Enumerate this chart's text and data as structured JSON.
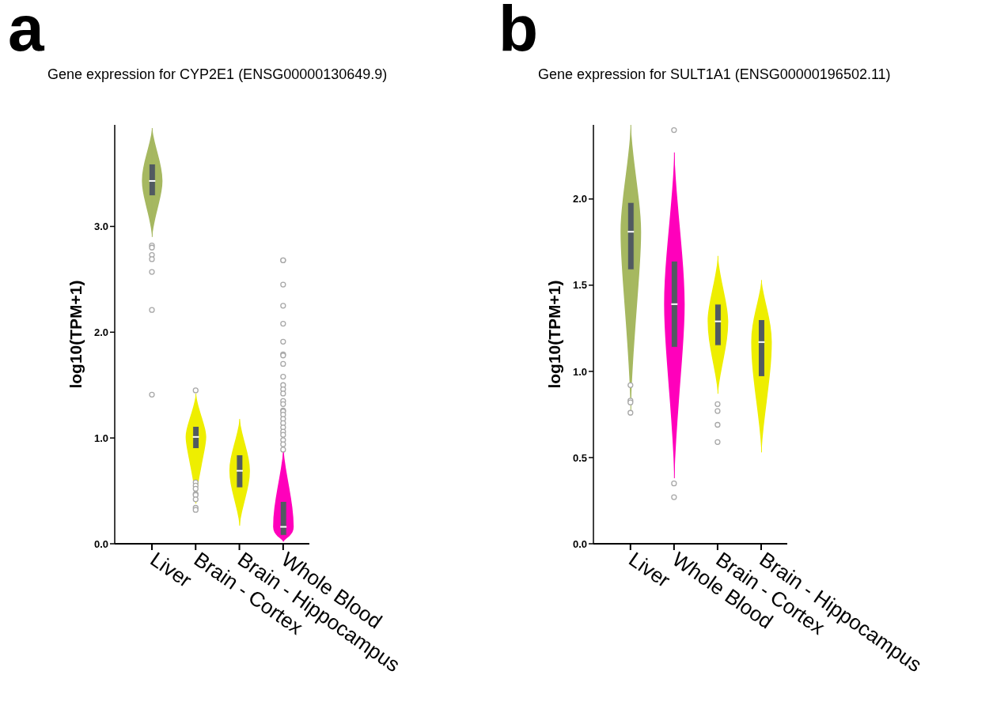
{
  "chart_data": [
    {
      "type": "box",
      "title": "Gene expression for CYP2E1 (ENSG00000130649.9)",
      "ylabel": "log10(TPM+1)",
      "annotations": [
        "a"
      ],
      "categories": [
        "Liver",
        "Brain - Cortex",
        "Brain - Hippocampus",
        "Whole Blood"
      ],
      "colors": [
        "#a6b860",
        "#eeee00",
        "#eeee00",
        "#ff00bb"
      ],
      "boxes": [
        {
          "low": 2.9,
          "q1": 3.29,
          "median": 3.43,
          "q3": 3.59,
          "high": 3.93,
          "outliers": [
            2.82,
            2.8,
            2.73,
            2.69,
            2.57,
            2.21,
            1.41
          ]
        },
        {
          "low": 0.38,
          "q1": 0.9,
          "median": 1.01,
          "q3": 1.11,
          "high": 1.42,
          "outliers": [
            1.45,
            0.58,
            0.55,
            0.52,
            0.47,
            0.46,
            0.42,
            0.34,
            0.32
          ]
        },
        {
          "low": 0.17,
          "q1": 0.53,
          "median": 0.69,
          "q3": 0.84,
          "high": 1.18
        },
        {
          "low": 0.02,
          "q1": 0.08,
          "median": 0.16,
          "q3": 0.4,
          "high": 0.9,
          "outliers": [
            2.68,
            2.68,
            2.45,
            2.25,
            2.08,
            1.91,
            1.79,
            1.78,
            1.7,
            1.58,
            1.5,
            1.46,
            1.42,
            1.35,
            1.32,
            1.26,
            1.25,
            1.22,
            1.18,
            1.14,
            1.1,
            1.06,
            1.03,
            0.98,
            0.94,
            0.89
          ]
        }
      ],
      "ylim": [
        0,
        3.96
      ],
      "yticks": [
        {
          "value": 0,
          "label": "0.0"
        },
        {
          "value": 1,
          "label": "1.0"
        },
        {
          "value": 2,
          "label": "2.0"
        },
        {
          "value": 3,
          "label": "3.0"
        }
      ],
      "grid": false,
      "legend": false
    },
    {
      "type": "box",
      "title": "Gene expression for SULT1A1 (ENSG00000196502.11)",
      "ylabel": "log10(TPM+1)",
      "annotations": [
        "b"
      ],
      "categories": [
        "Liver",
        "Whole Blood",
        "Brain - Cortex",
        "Brain - Hippocampus"
      ],
      "colors": [
        "#a6b860",
        "#ff00bb",
        "#eeee00",
        "#eeee00"
      ],
      "boxes": [
        {
          "low": 0.77,
          "q1": 1.59,
          "median": 1.81,
          "q3": 1.98,
          "high": 2.43,
          "outliers": [
            0.92,
            0.83,
            0.82,
            0.76
          ]
        },
        {
          "low": 0.38,
          "q1": 1.14,
          "median": 1.39,
          "q3": 1.64,
          "high": 2.27,
          "outliers": [
            2.4,
            0.35,
            0.27
          ]
        },
        {
          "low": 0.87,
          "q1": 1.15,
          "median": 1.29,
          "q3": 1.39,
          "high": 1.67,
          "outliers": [
            0.81,
            0.77,
            0.69,
            0.59
          ]
        },
        {
          "low": 0.53,
          "q1": 0.97,
          "median": 1.17,
          "q3": 1.3,
          "high": 1.53
        }
      ],
      "ylim": [
        0,
        2.43
      ],
      "yticks": [
        {
          "value": 0,
          "label": "0.0"
        },
        {
          "value": 0.5,
          "label": "0.5"
        },
        {
          "value": 1,
          "label": "1.0"
        },
        {
          "value": 1.5,
          "label": "1.5"
        },
        {
          "value": 2,
          "label": "2.0"
        }
      ],
      "grid": false,
      "legend": false
    }
  ]
}
